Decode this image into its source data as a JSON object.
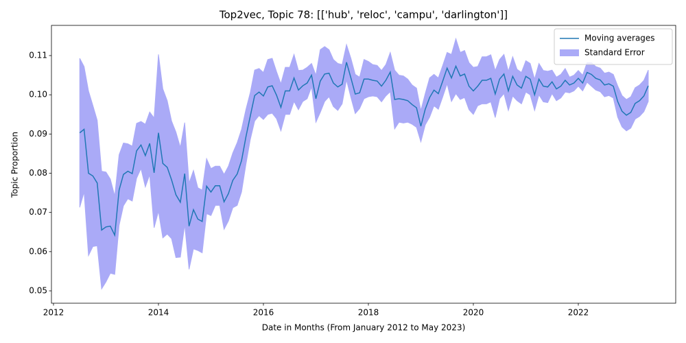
{
  "chart_data": {
    "type": "line",
    "title": "Top2vec, Topic 78: [['hub', 'reloc', 'campu', 'darlington']]",
    "xlabel": "Date in Months (From January 2012 to May 2023)",
    "ylabel": "Topic Proportion",
    "x": [
      2012.5,
      2012.583,
      2012.667,
      2012.75,
      2012.833,
      2012.917,
      2013,
      2013.083,
      2013.167,
      2013.25,
      2013.333,
      2013.417,
      2013.5,
      2013.583,
      2013.667,
      2013.75,
      2013.833,
      2013.917,
      2014,
      2014.083,
      2014.167,
      2014.25,
      2014.333,
      2014.417,
      2014.5,
      2014.583,
      2014.667,
      2014.75,
      2014.833,
      2014.917,
      2015,
      2015.083,
      2015.167,
      2015.25,
      2015.333,
      2015.417,
      2015.5,
      2015.583,
      2015.667,
      2015.75,
      2015.833,
      2015.917,
      2016,
      2016.083,
      2016.167,
      2016.25,
      2016.333,
      2016.417,
      2016.5,
      2016.583,
      2016.667,
      2016.75,
      2016.833,
      2016.917,
      2017,
      2017.083,
      2017.167,
      2017.25,
      2017.333,
      2017.417,
      2017.5,
      2017.583,
      2017.667,
      2017.75,
      2017.833,
      2017.917,
      2018,
      2018.083,
      2018.167,
      2018.25,
      2018.333,
      2018.417,
      2018.5,
      2018.583,
      2018.667,
      2018.75,
      2018.833,
      2018.917,
      2019,
      2019.083,
      2019.167,
      2019.25,
      2019.333,
      2019.417,
      2019.5,
      2019.583,
      2019.667,
      2019.75,
      2019.833,
      2019.917,
      2020,
      2020.083,
      2020.167,
      2020.25,
      2020.333,
      2020.417,
      2020.5,
      2020.583,
      2020.667,
      2020.75,
      2020.833,
      2020.917,
      2021,
      2021.083,
      2021.167,
      2021.25,
      2021.333,
      2021.417,
      2021.5,
      2021.583,
      2021.667,
      2021.75,
      2021.833,
      2021.917,
      2022,
      2022.083,
      2022.167,
      2022.25,
      2022.333,
      2022.417,
      2022.5,
      2022.583,
      2022.667,
      2022.75,
      2022.833,
      2022.917,
      2023,
      2023.083,
      2023.167,
      2023.25,
      2023.333
    ],
    "series": [
      {
        "name": "Moving averages",
        "color": "#1f77b4",
        "values": [
          0.0903,
          0.0912,
          0.08,
          0.0793,
          0.0775,
          0.0655,
          0.0663,
          0.0665,
          0.0642,
          0.0757,
          0.0797,
          0.0805,
          0.0799,
          0.0857,
          0.0872,
          0.0845,
          0.0876,
          0.0801,
          0.0903,
          0.0825,
          0.0815,
          0.0783,
          0.0745,
          0.0726,
          0.0799,
          0.0665,
          0.0707,
          0.0683,
          0.0677,
          0.0767,
          0.0752,
          0.0768,
          0.0768,
          0.0727,
          0.0748,
          0.0782,
          0.0798,
          0.0832,
          0.0893,
          0.0946,
          0.0998,
          0.1007,
          0.0997,
          0.102,
          0.1023,
          0.0999,
          0.0968,
          0.101,
          0.101,
          0.1043,
          0.1012,
          0.1023,
          0.103,
          0.105,
          0.099,
          0.1035,
          0.1053,
          0.1055,
          0.103,
          0.102,
          0.1027,
          0.1083,
          0.1043,
          0.1002,
          0.1005,
          0.104,
          0.104,
          0.1037,
          0.1035,
          0.1022,
          0.1037,
          0.1058,
          0.0988,
          0.099,
          0.0988,
          0.0985,
          0.0975,
          0.0967,
          0.092,
          0.0963,
          0.0993,
          0.1012,
          0.1003,
          0.1035,
          0.1068,
          0.1043,
          0.1073,
          0.1048,
          0.1053,
          0.1022,
          0.101,
          0.1022,
          0.1037,
          0.1037,
          0.1042,
          0.1002,
          0.104,
          0.1053,
          0.101,
          0.1047,
          0.1025,
          0.1017,
          0.1047,
          0.104,
          0.1,
          0.104,
          0.1022,
          0.102,
          0.1033,
          0.1015,
          0.1022,
          0.1037,
          0.1025,
          0.103,
          0.1042,
          0.103,
          0.1057,
          0.1052,
          0.1042,
          0.1038,
          0.1025,
          0.1028,
          0.1022,
          0.0983,
          0.0958,
          0.0948,
          0.0955,
          0.0978,
          0.0985,
          0.0997,
          0.1023
        ]
      },
      {
        "name": "Standard Error",
        "color": "#aaaaf7",
        "band_of": 0,
        "values": [
          0.019,
          0.016,
          0.021,
          0.018,
          0.016,
          0.015,
          0.014,
          0.012,
          0.01,
          0.009,
          0.008,
          0.007,
          0.007,
          0.007,
          0.006,
          0.008,
          0.008,
          0.014,
          0.02,
          0.019,
          0.017,
          0.015,
          0.016,
          0.014,
          0.013,
          0.011,
          0.01,
          0.008,
          0.008,
          0.007,
          0.006,
          0.005,
          0.005,
          0.007,
          0.007,
          0.007,
          0.008,
          0.008,
          0.007,
          0.006,
          0.0065,
          0.006,
          0.006,
          0.007,
          0.007,
          0.006,
          0.006,
          0.006,
          0.006,
          0.006,
          0.005,
          0.004,
          0.004,
          0.003,
          0.006,
          0.008,
          0.007,
          0.006,
          0.006,
          0.006,
          0.005,
          0.0045,
          0.005,
          0.005,
          0.004,
          0.005,
          0.0045,
          0.004,
          0.004,
          0.004,
          0.004,
          0.005,
          0.0075,
          0.006,
          0.006,
          0.0055,
          0.005,
          0.005,
          0.004,
          0.004,
          0.005,
          0.004,
          0.004,
          0.004,
          0.004,
          0.006,
          0.007,
          0.006,
          0.006,
          0.006,
          0.006,
          0.005,
          0.006,
          0.006,
          0.006,
          0.006,
          0.005,
          0.005,
          0.005,
          0.005,
          0.004,
          0.004,
          0.004,
          0.004,
          0.004,
          0.004,
          0.004,
          0.004,
          0.003,
          0.003,
          0.003,
          0.003,
          0.002,
          0.002,
          0.002,
          0.002,
          0.0025,
          0.003,
          0.003,
          0.003,
          0.003,
          0.003,
          0.003,
          0.004,
          0.004,
          0.004,
          0.004,
          0.004,
          0.004,
          0.004,
          0.004
        ]
      }
    ],
    "xlim": [
      2011.961,
      2023.856
    ],
    "xticks": [
      2012,
      2014,
      2016,
      2018,
      2020,
      2022
    ],
    "ylim": [
      0.04685,
      0.1177
    ],
    "yticks": [
      0.05,
      0.06,
      0.07,
      0.08,
      0.09,
      {
        "value": 0.1,
        "label": "0.10"
      },
      0.11
    ],
    "legend": "upper right",
    "grid": false
  }
}
